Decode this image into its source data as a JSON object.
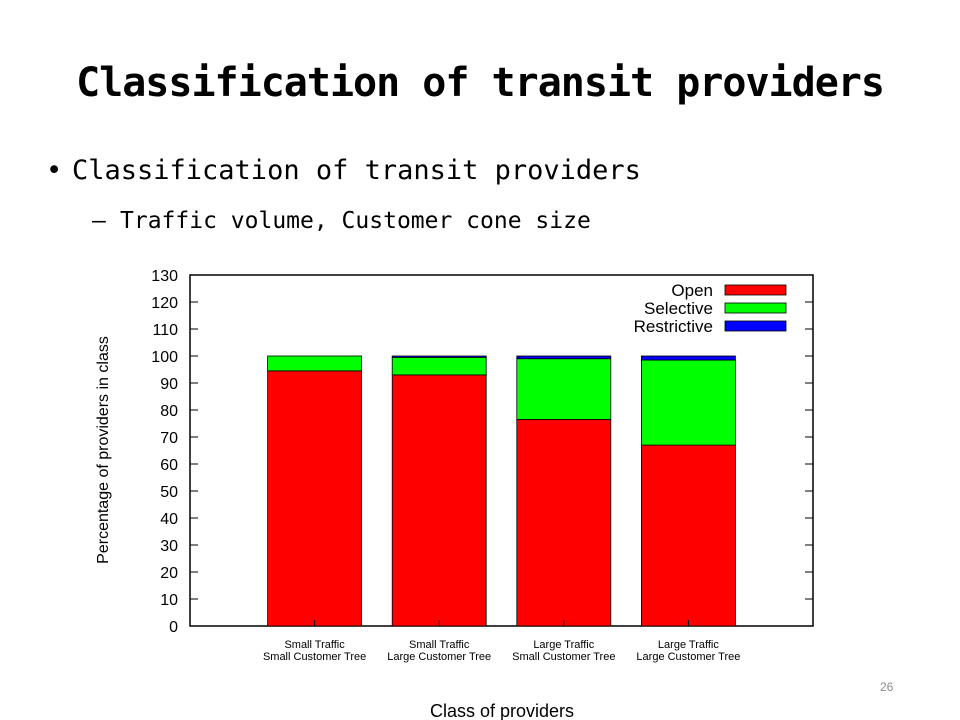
{
  "slide": {
    "title": "Classification of transit providers",
    "bullet": "Classification of transit providers",
    "sub_bullet": "Traffic volume, Customer cone size",
    "page_number": "26"
  },
  "chart_data": {
    "type": "bar",
    "stacked": true,
    "categories": [
      [
        "Small Traffic",
        "Small Customer Tree"
      ],
      [
        "Small Traffic",
        "Large Customer Tree"
      ],
      [
        "Large Traffic",
        "Small Customer Tree"
      ],
      [
        "Large Traffic",
        "Large Customer Tree"
      ]
    ],
    "series": [
      {
        "name": "Open",
        "color": "#ff0000",
        "values": [
          94.5,
          93,
          76.5,
          67
        ]
      },
      {
        "name": "Selective",
        "color": "#00ff00",
        "values": [
          5.5,
          6.5,
          22.5,
          31.5
        ]
      },
      {
        "name": "Restrictive",
        "color": "#0000ff",
        "values": [
          0,
          0.5,
          1,
          1.5
        ]
      }
    ],
    "xlabel": "Class of providers",
    "ylabel": "Percentage of providers in class",
    "ylim": [
      0,
      130
    ],
    "yticks": [
      0,
      10,
      20,
      30,
      40,
      50,
      60,
      70,
      80,
      90,
      100,
      110,
      120,
      130
    ],
    "grid": false,
    "legend_position": "top-right"
  }
}
